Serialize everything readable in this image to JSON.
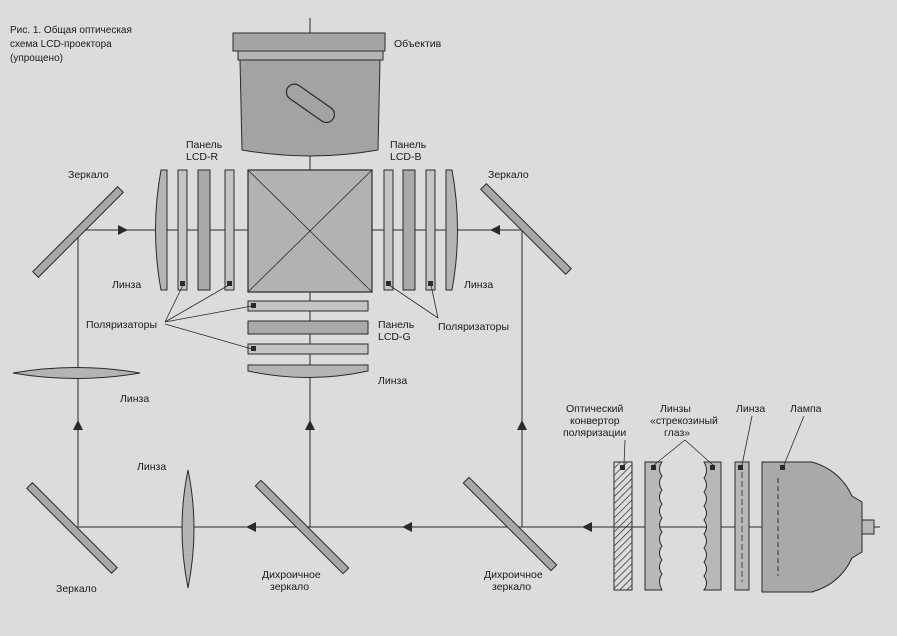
{
  "caption": [
    "Рис. 1. Общая оптическая",
    "схема LCD-проектора",
    "(упрощено)"
  ],
  "labels": {
    "objective": "Объектив",
    "panel_r": [
      "Панель",
      "LCD-R"
    ],
    "panel_b": [
      "Панель",
      "LCD-B"
    ],
    "panel_g": [
      "Панель",
      "LCD-G"
    ],
    "mirror_top_left": "Зеркало",
    "mirror_top_right": "Зеркало",
    "mirror_bottom_left": "Зеркало",
    "lens_left_r": "Линза",
    "lens_right_b": "Линза",
    "lens_g": "Линза",
    "lens_left_mid": "Линза",
    "lens_bottom": "Линза",
    "polarizers_left": "Поляризаторы",
    "polarizers_right": "Поляризаторы",
    "dichroic_left": [
      "Дихроичное",
      "зеркало"
    ],
    "dichroic_right": [
      "Дихроичное",
      "зеркало"
    ],
    "converter": [
      "Оптический",
      "конвертор",
      "поляризации"
    ],
    "fly_eye": [
      "Линзы",
      "«стрекозиный",
      "глаз»"
    ],
    "lens_source": "Линза",
    "lamp": "Лампа"
  },
  "colors": {
    "background": "#dcdcda",
    "line": "#2a2a2a",
    "component_fill": "#a9a9a7"
  }
}
